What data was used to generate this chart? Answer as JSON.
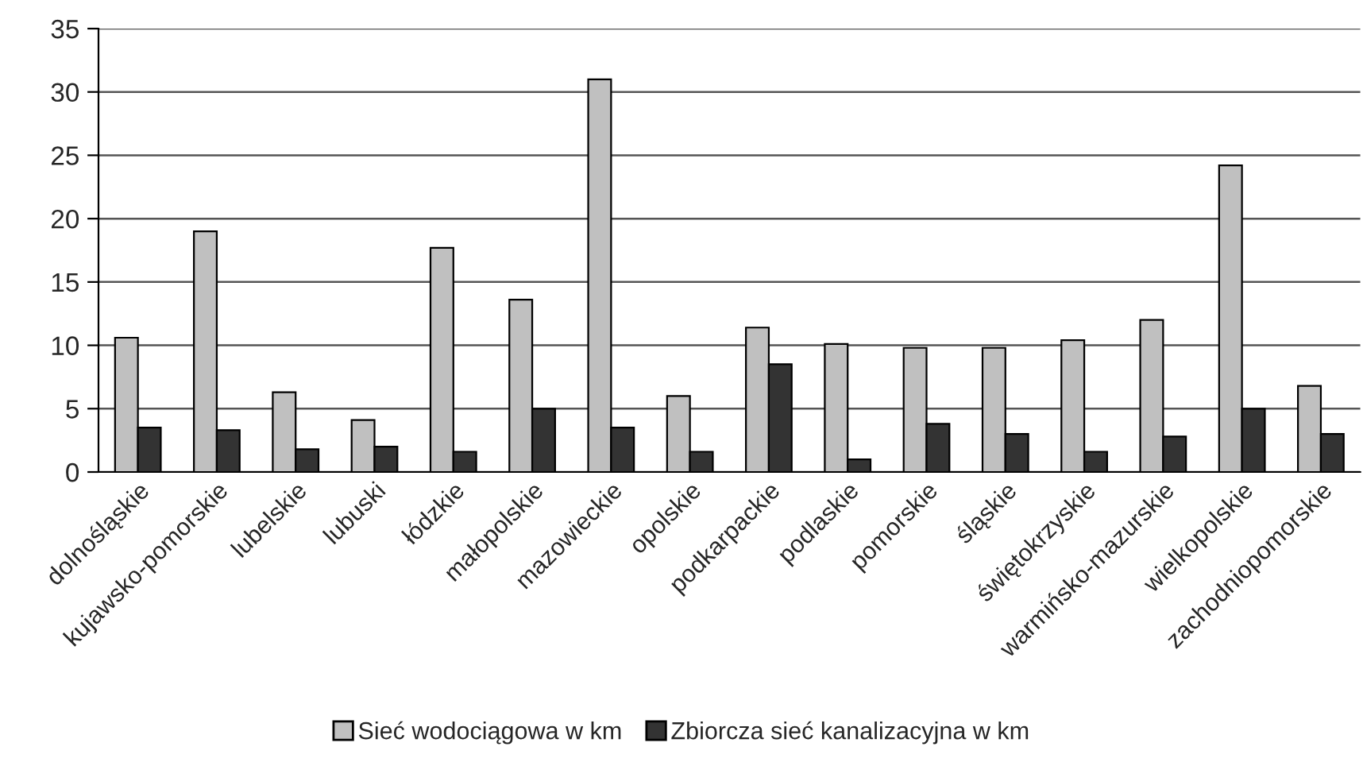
{
  "chart_data": {
    "type": "bar",
    "categories": [
      "dolnośląskie",
      "kujawsko-pomorskie",
      "lubelskie",
      "lubuski",
      "łódzkie",
      "małopolskie",
      "mazowieckie",
      "opolskie",
      "podkarpackie",
      "podlaskie",
      "pomorskie",
      "śląskie",
      "świętokrzyskie",
      "warmińsko-mazurskie",
      "wielkopolskie",
      "zachodniopomorskie"
    ],
    "series": [
      {
        "name": "Sieć wodociągowa w km",
        "color": "#c0c0c0",
        "values": [
          10.6,
          19.0,
          6.3,
          4.1,
          17.7,
          13.6,
          31.0,
          6.0,
          11.4,
          10.1,
          9.8,
          9.8,
          10.4,
          12.0,
          24.2,
          6.8
        ]
      },
      {
        "name": "Zbiorcza sieć kanalizacyjna w km",
        "color": "#333333",
        "values": [
          3.5,
          3.3,
          1.8,
          2.0,
          1.6,
          5.0,
          3.5,
          1.6,
          8.5,
          1.0,
          3.8,
          3.0,
          1.6,
          2.8,
          5.0,
          3.0
        ]
      }
    ],
    "ylim": [
      0,
      35
    ],
    "yticks": [
      0,
      5,
      10,
      15,
      20,
      25,
      30,
      35
    ],
    "grid": "y",
    "legend": "bottom"
  }
}
